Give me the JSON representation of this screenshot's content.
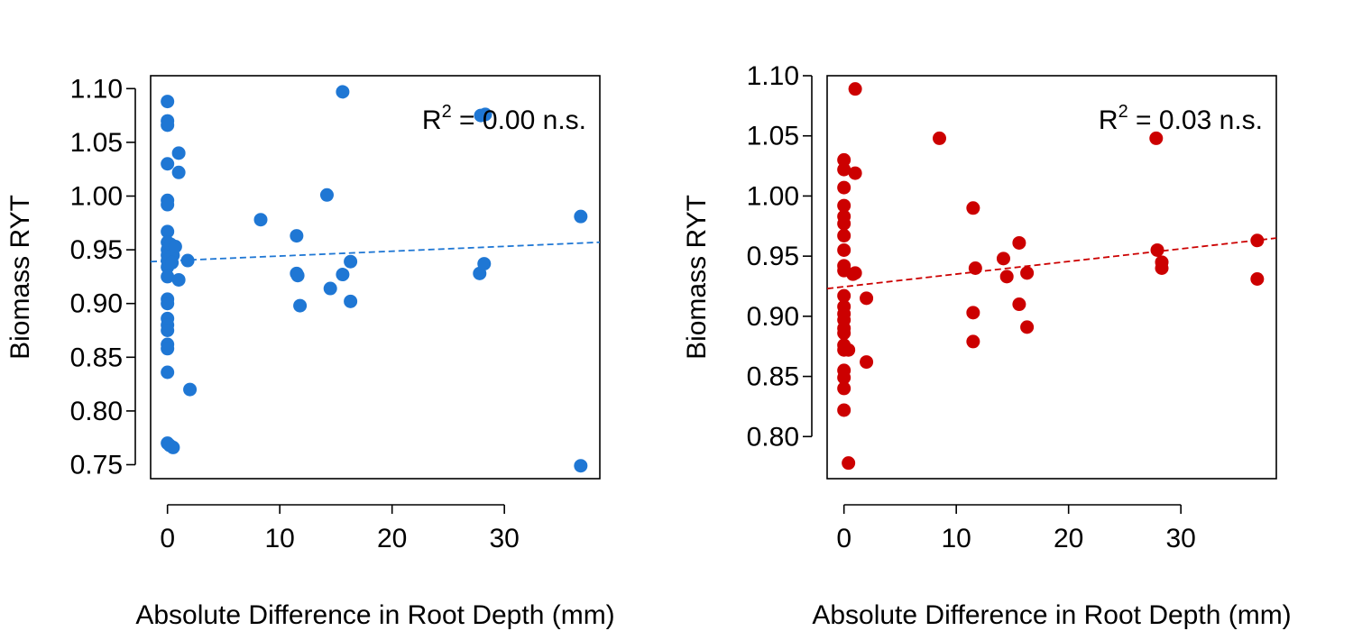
{
  "chart_data": [
    {
      "type": "scatter",
      "title": "",
      "xlabel": "Absolute Difference in Root Depth (mm)",
      "ylabel": "Biomass RYT",
      "xlim": [
        -1.5,
        38.5
      ],
      "ylim": [
        0.737,
        1.112
      ],
      "xticks": [
        "0",
        "10",
        "20",
        "30"
      ],
      "yticks": [
        "0.75",
        "0.80",
        "0.85",
        "0.90",
        "0.95",
        "1.00",
        "1.05",
        "1.10"
      ],
      "grid": false,
      "legend": "none",
      "annotation": {
        "base": "R",
        "sup": "2",
        "rest": " = 0.00 n.s."
      },
      "color": "#1f77d4",
      "trendline": {
        "style": "dashed",
        "x": [
          -1.5,
          38.5
        ],
        "y": [
          0.939,
          0.957
        ]
      },
      "points": [
        {
          "x": 0,
          "y": 1.088
        },
        {
          "x": 0,
          "y": 1.07
        },
        {
          "x": 0,
          "y": 1.066
        },
        {
          "x": 0,
          "y": 1.03
        },
        {
          "x": 0,
          "y": 0.996
        },
        {
          "x": 0,
          "y": 0.992
        },
        {
          "x": 0,
          "y": 0.967
        },
        {
          "x": 0,
          "y": 0.957
        },
        {
          "x": 0,
          "y": 0.95
        },
        {
          "x": 0,
          "y": 0.945
        },
        {
          "x": 0,
          "y": 0.94
        },
        {
          "x": 0,
          "y": 0.934
        },
        {
          "x": 0,
          "y": 0.925
        },
        {
          "x": 0,
          "y": 0.904
        },
        {
          "x": 0,
          "y": 0.9
        },
        {
          "x": 0,
          "y": 0.886
        },
        {
          "x": 0,
          "y": 0.88
        },
        {
          "x": 0,
          "y": 0.875
        },
        {
          "x": 0,
          "y": 0.862
        },
        {
          "x": 0,
          "y": 0.858
        },
        {
          "x": 0,
          "y": 0.836
        },
        {
          "x": 0,
          "y": 0.77
        },
        {
          "x": 0.2,
          "y": 0.768
        },
        {
          "x": 0.5,
          "y": 0.766
        },
        {
          "x": 0.3,
          "y": 0.955
        },
        {
          "x": 0.5,
          "y": 0.945
        },
        {
          "x": 0.7,
          "y": 0.953
        },
        {
          "x": 0.4,
          "y": 0.938
        },
        {
          "x": 1.0,
          "y": 1.04
        },
        {
          "x": 1.0,
          "y": 1.022
        },
        {
          "x": 1.0,
          "y": 0.922
        },
        {
          "x": 1.8,
          "y": 0.94
        },
        {
          "x": 2.0,
          "y": 0.82
        },
        {
          "x": 8.3,
          "y": 0.978
        },
        {
          "x": 11.5,
          "y": 0.963
        },
        {
          "x": 11.5,
          "y": 0.928
        },
        {
          "x": 11.6,
          "y": 0.926
        },
        {
          "x": 11.8,
          "y": 0.898
        },
        {
          "x": 14.2,
          "y": 1.001
        },
        {
          "x": 14.5,
          "y": 0.914
        },
        {
          "x": 15.6,
          "y": 0.927
        },
        {
          "x": 15.6,
          "y": 1.097
        },
        {
          "x": 16.3,
          "y": 0.939
        },
        {
          "x": 16.3,
          "y": 0.902
        },
        {
          "x": 27.8,
          "y": 0.928
        },
        {
          "x": 28.2,
          "y": 0.937
        },
        {
          "x": 27.9,
          "y": 1.075
        },
        {
          "x": 28.3,
          "y": 1.076
        },
        {
          "x": 36.8,
          "y": 0.981
        },
        {
          "x": 36.8,
          "y": 0.749
        }
      ]
    },
    {
      "type": "scatter",
      "title": "",
      "xlabel": "Absolute Difference in Root Depth (mm)",
      "ylabel": "Biomass RYT",
      "xlim": [
        -1.5,
        38.5
      ],
      "ylim": [
        0.765,
        1.1
      ],
      "xticks": [
        "0",
        "10",
        "20",
        "30"
      ],
      "yticks": [
        "0.80",
        "0.85",
        "0.90",
        "0.95",
        "1.00",
        "1.05",
        "1.10"
      ],
      "grid": false,
      "legend": "none",
      "annotation": {
        "base": "R",
        "sup": "2",
        "rest": " = 0.03 n.s."
      },
      "color": "#cc0000",
      "trendline": {
        "style": "dashed",
        "x": [
          -1.5,
          38.5
        ],
        "y": [
          0.923,
          0.965
        ]
      },
      "points": [
        {
          "x": 0,
          "y": 1.03
        },
        {
          "x": 0,
          "y": 1.022
        },
        {
          "x": 0,
          "y": 1.007
        },
        {
          "x": 0,
          "y": 0.992
        },
        {
          "x": 0,
          "y": 0.983
        },
        {
          "x": 0,
          "y": 0.977
        },
        {
          "x": 0,
          "y": 0.967
        },
        {
          "x": 0,
          "y": 0.955
        },
        {
          "x": 0,
          "y": 0.942
        },
        {
          "x": 0,
          "y": 0.938
        },
        {
          "x": 0,
          "y": 0.917
        },
        {
          "x": 0,
          "y": 0.908
        },
        {
          "x": 0,
          "y": 0.902
        },
        {
          "x": 0,
          "y": 0.897
        },
        {
          "x": 0,
          "y": 0.89
        },
        {
          "x": 0,
          "y": 0.886
        },
        {
          "x": 0,
          "y": 0.876
        },
        {
          "x": 0,
          "y": 0.872
        },
        {
          "x": 0,
          "y": 0.855
        },
        {
          "x": 0,
          "y": 0.849
        },
        {
          "x": 0,
          "y": 0.84
        },
        {
          "x": 0,
          "y": 0.822
        },
        {
          "x": 0.4,
          "y": 0.778
        },
        {
          "x": 0.4,
          "y": 0.872
        },
        {
          "x": 1.0,
          "y": 1.089
        },
        {
          "x": 1.0,
          "y": 1.019
        },
        {
          "x": 0.8,
          "y": 0.935
        },
        {
          "x": 1.0,
          "y": 0.936
        },
        {
          "x": 2.0,
          "y": 0.915
        },
        {
          "x": 2.0,
          "y": 0.862
        },
        {
          "x": 8.5,
          "y": 1.048
        },
        {
          "x": 11.5,
          "y": 0.99
        },
        {
          "x": 11.7,
          "y": 0.94
        },
        {
          "x": 11.5,
          "y": 0.903
        },
        {
          "x": 11.5,
          "y": 0.879
        },
        {
          "x": 14.2,
          "y": 0.948
        },
        {
          "x": 14.5,
          "y": 0.933
        },
        {
          "x": 15.6,
          "y": 0.961
        },
        {
          "x": 15.6,
          "y": 0.91
        },
        {
          "x": 16.3,
          "y": 0.936
        },
        {
          "x": 16.3,
          "y": 0.891
        },
        {
          "x": 27.8,
          "y": 1.048
        },
        {
          "x": 27.9,
          "y": 0.955
        },
        {
          "x": 28.3,
          "y": 0.945
        },
        {
          "x": 28.3,
          "y": 0.94
        },
        {
          "x": 36.8,
          "y": 0.963
        },
        {
          "x": 36.8,
          "y": 0.931
        }
      ]
    }
  ]
}
